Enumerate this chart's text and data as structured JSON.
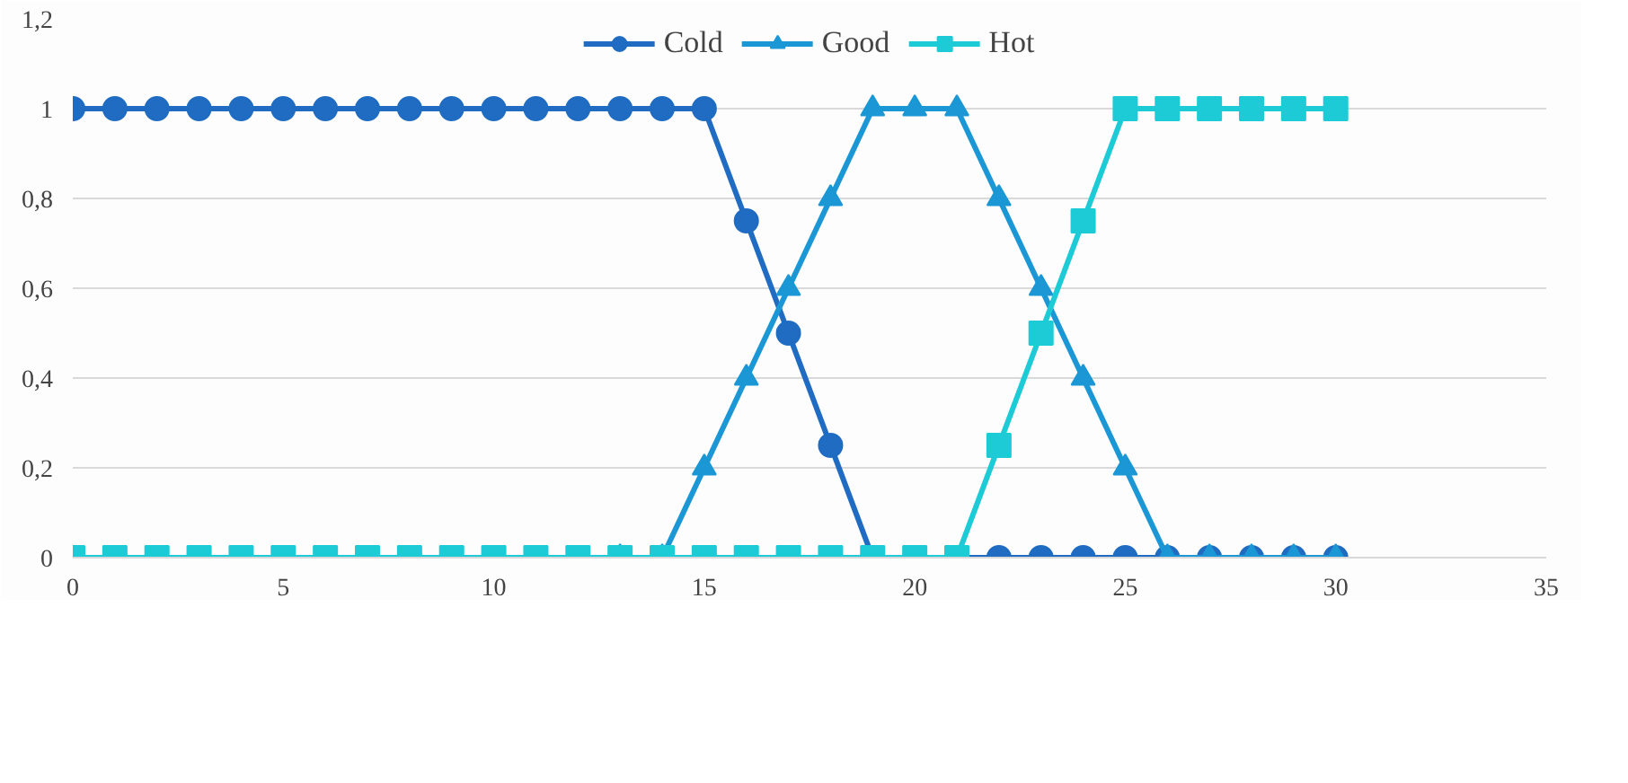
{
  "chart_data": {
    "type": "line",
    "x": [
      0,
      1,
      2,
      3,
      4,
      5,
      6,
      7,
      8,
      9,
      10,
      11,
      12,
      13,
      14,
      15,
      16,
      17,
      18,
      19,
      20,
      21,
      22,
      23,
      24,
      25,
      26,
      27,
      28,
      29,
      30
    ],
    "series": [
      {
        "name": "Cold",
        "color": "#1f6cc2",
        "marker": "circle",
        "values": [
          1,
          1,
          1,
          1,
          1,
          1,
          1,
          1,
          1,
          1,
          1,
          1,
          1,
          1,
          1,
          1,
          0.75,
          0.5,
          0.25,
          0,
          0,
          0,
          0,
          0,
          0,
          0,
          0,
          0,
          0,
          0,
          0
        ]
      },
      {
        "name": "Good",
        "color": "#1a97d4",
        "marker": "triangle",
        "values": [
          null,
          null,
          null,
          null,
          null,
          null,
          null,
          null,
          null,
          null,
          null,
          null,
          null,
          0,
          0,
          0.2,
          0.4,
          0.6,
          0.8,
          1,
          1,
          1,
          0.8,
          0.6,
          0.4,
          0.2,
          0,
          0,
          0,
          0,
          0
        ]
      },
      {
        "name": "Hot",
        "color": "#1ccbd6",
        "marker": "square",
        "values": [
          0,
          0,
          0,
          0,
          0,
          0,
          0,
          0,
          0,
          0,
          0,
          0,
          0,
          0,
          0,
          0,
          0,
          0,
          0,
          0,
          0,
          0,
          0.25,
          0.5,
          0.75,
          1,
          1,
          1,
          1,
          1,
          1
        ]
      }
    ],
    "xlim": [
      0,
      35
    ],
    "xticks": [
      0,
      5,
      10,
      15,
      20,
      25,
      30,
      35
    ],
    "ylim": [
      0,
      1.2
    ],
    "yticks": [
      0,
      {
        "value": 0.2,
        "label": "0,2"
      },
      {
        "value": 0.4,
        "label": "0,4"
      },
      {
        "value": 0.6,
        "label": "0,6"
      },
      {
        "value": 0.8,
        "label": "0,8"
      },
      1,
      {
        "value": 1.2,
        "label": "1,2"
      }
    ],
    "grid": "y",
    "legend": "top",
    "line_style": "solid"
  }
}
